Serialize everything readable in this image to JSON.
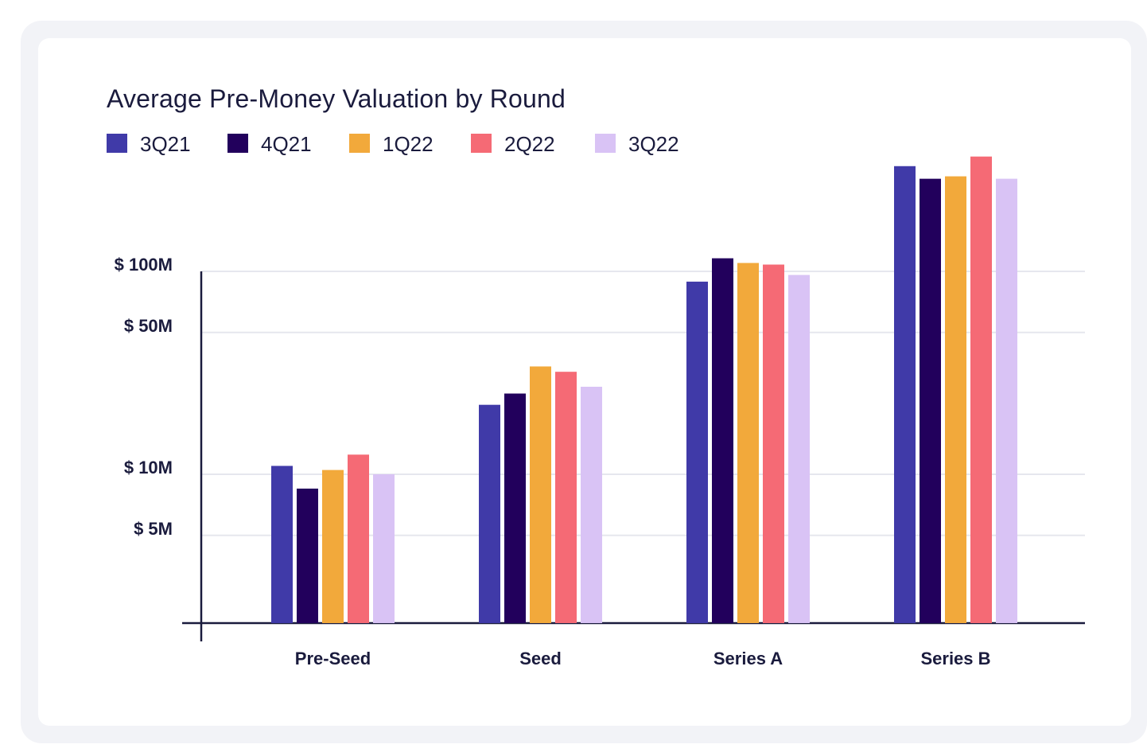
{
  "colors": {
    "3Q21": "#403aa8",
    "4Q21": "#22005c",
    "1Q22": "#f2a93b",
    "2Q22": "#f56a75",
    "3Q22": "#d9c3f5",
    "text": "#1a1b3d",
    "grid": "#e6e7ee",
    "axis": "#1a1b3d"
  },
  "chart_data": {
    "type": "bar",
    "title": "Average Pre-Money Valuation by Round",
    "xlabel": "",
    "ylabel": "",
    "y_scale": "log",
    "ylim": [
      1.9,
      500
    ],
    "yticks": [
      {
        "value": 5,
        "label": "$ 5M"
      },
      {
        "value": 10,
        "label": "$ 10M"
      },
      {
        "value": 50,
        "label": "$ 50M"
      },
      {
        "value": 100,
        "label": "$ 100M"
      }
    ],
    "grid": "horizontal",
    "legend_position": "top-left",
    "categories": [
      "Pre-Seed",
      "Seed",
      "Series A",
      "Series B"
    ],
    "series": [
      {
        "name": "3Q21",
        "values": [
          11,
          22,
          89,
          330
        ]
      },
      {
        "name": "4Q21",
        "values": [
          8.5,
          25,
          116,
          286
        ]
      },
      {
        "name": "1Q22",
        "values": [
          10.5,
          34,
          110,
          294
        ]
      },
      {
        "name": "2Q22",
        "values": [
          12.5,
          32,
          108,
          368
        ]
      },
      {
        "name": "3Q22",
        "values": [
          10,
          27,
          96,
          286
        ]
      }
    ]
  }
}
